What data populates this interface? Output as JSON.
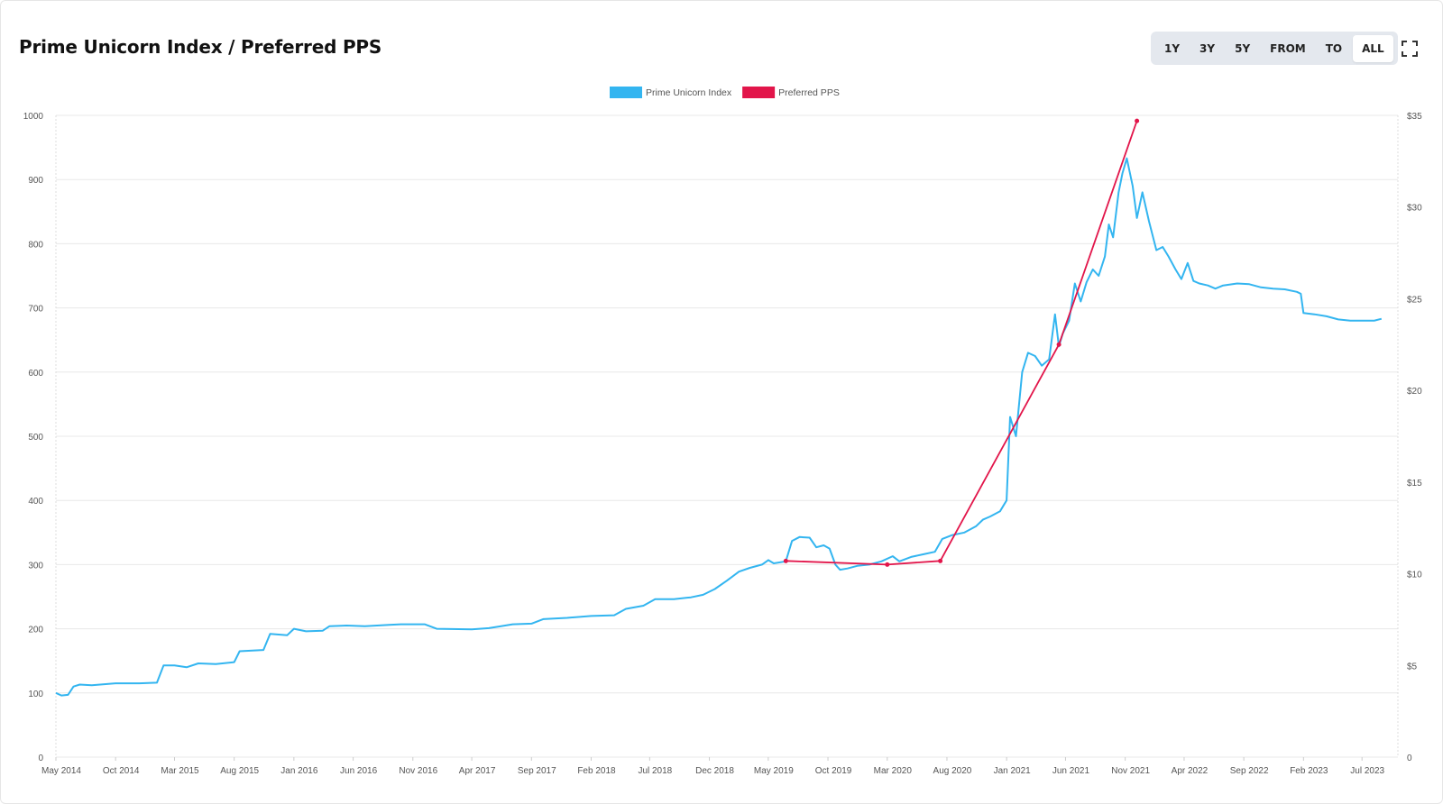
{
  "header": {
    "title": "Prime Unicorn Index / Preferred PPS"
  },
  "controls": {
    "ranges": [
      {
        "label": "1Y",
        "active": false
      },
      {
        "label": "3Y",
        "active": false
      },
      {
        "label": "5Y",
        "active": false
      },
      {
        "label": "FROM",
        "active": false
      },
      {
        "label": "TO",
        "active": false
      },
      {
        "label": "ALL",
        "active": true
      }
    ],
    "expand_icon": "fullscreen-icon"
  },
  "colors": {
    "index_line": "#33b5f0",
    "pps_line": "#e2154a",
    "grid": "#e8e8e8",
    "axis_text": "#555555"
  },
  "chart_data": {
    "type": "line",
    "title": "Prime Unicorn Index / Preferred PPS",
    "legend": [
      "Prime Unicorn Index",
      "Preferred PPS"
    ],
    "legend_position": "top-center",
    "grid": true,
    "x_start": "2014-05",
    "x_end": "2023-10",
    "x_ticks": [
      "May 2014",
      "Oct 2014",
      "Mar 2015",
      "Aug 2015",
      "Jan 2016",
      "Jun 2016",
      "Nov 2016",
      "Apr 2017",
      "Sep 2017",
      "Feb 2018",
      "Jul 2018",
      "Dec 2018",
      "May 2019",
      "Oct 2019",
      "Mar 2020",
      "Aug 2020",
      "Jan 2021",
      "Jun 2021",
      "Nov 2021",
      "Apr 2022",
      "Sep 2022",
      "Feb 2023",
      "Jul 2023"
    ],
    "y_left": {
      "min": 0,
      "max": 1000,
      "ticks": [
        "0",
        "100",
        "200",
        "300",
        "400",
        "500",
        "600",
        "700",
        "800",
        "900",
        "1000"
      ]
    },
    "y_right": {
      "min": 0,
      "max": 35,
      "ticks": [
        "0",
        "$5",
        "$10",
        "$15",
        "$20",
        "$25",
        "$30",
        "$35"
      ]
    },
    "series": [
      {
        "name": "Prime Unicorn Index",
        "axis": "left",
        "points": [
          [
            "2014-05-01",
            100
          ],
          [
            "2014-05-15",
            96
          ],
          [
            "2014-06-01",
            97
          ],
          [
            "2014-06-15",
            110
          ],
          [
            "2014-07-01",
            113
          ],
          [
            "2014-08-01",
            112
          ],
          [
            "2014-10-01",
            115
          ],
          [
            "2014-12-01",
            115
          ],
          [
            "2015-01-15",
            116
          ],
          [
            "2015-02-01",
            143
          ],
          [
            "2015-03-01",
            143
          ],
          [
            "2015-04-01",
            140
          ],
          [
            "2015-05-01",
            146
          ],
          [
            "2015-06-15",
            145
          ],
          [
            "2015-08-01",
            148
          ],
          [
            "2015-08-15",
            165
          ],
          [
            "2015-10-15",
            167
          ],
          [
            "2015-11-01",
            192
          ],
          [
            "2015-12-15",
            190
          ],
          [
            "2016-01-01",
            200
          ],
          [
            "2016-02-01",
            196
          ],
          [
            "2016-03-15",
            197
          ],
          [
            "2016-04-01",
            204
          ],
          [
            "2016-05-15",
            205
          ],
          [
            "2016-07-01",
            204
          ],
          [
            "2016-09-01",
            206
          ],
          [
            "2016-10-01",
            207
          ],
          [
            "2016-12-01",
            207
          ],
          [
            "2017-01-01",
            200
          ],
          [
            "2017-04-01",
            199
          ],
          [
            "2017-05-15",
            201
          ],
          [
            "2017-06-15",
            204
          ],
          [
            "2017-07-15",
            207
          ],
          [
            "2017-09-01",
            208
          ],
          [
            "2017-10-01",
            215
          ],
          [
            "2017-12-01",
            217
          ],
          [
            "2018-02-01",
            220
          ],
          [
            "2018-04-01",
            221
          ],
          [
            "2018-05-01",
            231
          ],
          [
            "2018-06-15",
            236
          ],
          [
            "2018-07-15",
            246
          ],
          [
            "2018-09-01",
            246
          ],
          [
            "2018-10-15",
            249
          ],
          [
            "2018-11-15",
            253
          ],
          [
            "2018-12-15",
            262
          ],
          [
            "2019-01-15",
            275
          ],
          [
            "2019-02-15",
            289
          ],
          [
            "2019-03-15",
            295
          ],
          [
            "2019-04-15",
            300
          ],
          [
            "2019-05-01",
            307
          ],
          [
            "2019-05-15",
            302
          ],
          [
            "2019-06-15",
            305
          ],
          [
            "2019-07-01",
            337
          ],
          [
            "2019-07-20",
            343
          ],
          [
            "2019-08-15",
            342
          ],
          [
            "2019-09-01",
            327
          ],
          [
            "2019-09-20",
            330
          ],
          [
            "2019-10-05",
            325
          ],
          [
            "2019-10-20",
            300
          ],
          [
            "2019-11-01",
            292
          ],
          [
            "2019-11-20",
            294
          ],
          [
            "2019-12-15",
            298
          ],
          [
            "2020-01-15",
            300
          ],
          [
            "2020-02-15",
            305
          ],
          [
            "2020-03-15",
            313
          ],
          [
            "2020-04-01",
            305
          ],
          [
            "2020-05-01",
            312
          ],
          [
            "2020-06-01",
            316
          ],
          [
            "2020-07-01",
            320
          ],
          [
            "2020-07-20",
            340
          ],
          [
            "2020-08-15",
            346
          ],
          [
            "2020-09-15",
            350
          ],
          [
            "2020-10-15",
            360
          ],
          [
            "2020-11-01",
            370
          ],
          [
            "2020-11-20",
            375
          ],
          [
            "2020-12-15",
            383
          ],
          [
            "2021-01-01",
            400
          ],
          [
            "2021-01-10",
            530
          ],
          [
            "2021-01-25",
            500
          ],
          [
            "2021-02-10",
            600
          ],
          [
            "2021-02-25",
            630
          ],
          [
            "2021-03-15",
            625
          ],
          [
            "2021-04-01",
            610
          ],
          [
            "2021-04-20",
            620
          ],
          [
            "2021-05-05",
            690
          ],
          [
            "2021-05-15",
            640
          ],
          [
            "2021-05-25",
            660
          ],
          [
            "2021-06-10",
            680
          ],
          [
            "2021-06-25",
            738
          ],
          [
            "2021-07-10",
            710
          ],
          [
            "2021-07-25",
            740
          ],
          [
            "2021-08-10",
            760
          ],
          [
            "2021-08-25",
            750
          ],
          [
            "2021-09-10",
            780
          ],
          [
            "2021-09-20",
            830
          ],
          [
            "2021-10-01",
            810
          ],
          [
            "2021-10-15",
            880
          ],
          [
            "2021-10-25",
            910
          ],
          [
            "2021-11-05",
            933
          ],
          [
            "2021-11-20",
            890
          ],
          [
            "2021-12-01",
            840
          ],
          [
            "2021-12-15",
            880
          ],
          [
            "2022-01-01",
            835
          ],
          [
            "2022-01-20",
            790
          ],
          [
            "2022-02-05",
            795
          ],
          [
            "2022-02-20",
            780
          ],
          [
            "2022-03-10",
            760
          ],
          [
            "2022-03-25",
            745
          ],
          [
            "2022-04-10",
            770
          ],
          [
            "2022-04-25",
            742
          ],
          [
            "2022-05-10",
            738
          ],
          [
            "2022-06-01",
            735
          ],
          [
            "2022-06-20",
            730
          ],
          [
            "2022-07-10",
            735
          ],
          [
            "2022-08-15",
            738
          ],
          [
            "2022-09-15",
            737
          ],
          [
            "2022-10-15",
            732
          ],
          [
            "2022-11-15",
            730
          ],
          [
            "2022-12-15",
            729
          ],
          [
            "2023-01-15",
            725
          ],
          [
            "2023-01-25",
            722
          ],
          [
            "2023-02-01",
            692
          ],
          [
            "2023-03-01",
            690
          ],
          [
            "2023-04-01",
            687
          ],
          [
            "2023-05-01",
            682
          ],
          [
            "2023-06-01",
            680
          ],
          [
            "2023-07-01",
            680
          ],
          [
            "2023-08-01",
            680
          ],
          [
            "2023-08-20",
            683
          ]
        ]
      },
      {
        "name": "Preferred PPS",
        "axis": "right",
        "points": [
          [
            "2019-06-15",
            10.7
          ],
          [
            "2020-03-01",
            10.5
          ],
          [
            "2020-07-15",
            10.7
          ],
          [
            "2021-05-15",
            22.5
          ],
          [
            "2021-12-01",
            34.7
          ]
        ]
      }
    ]
  }
}
